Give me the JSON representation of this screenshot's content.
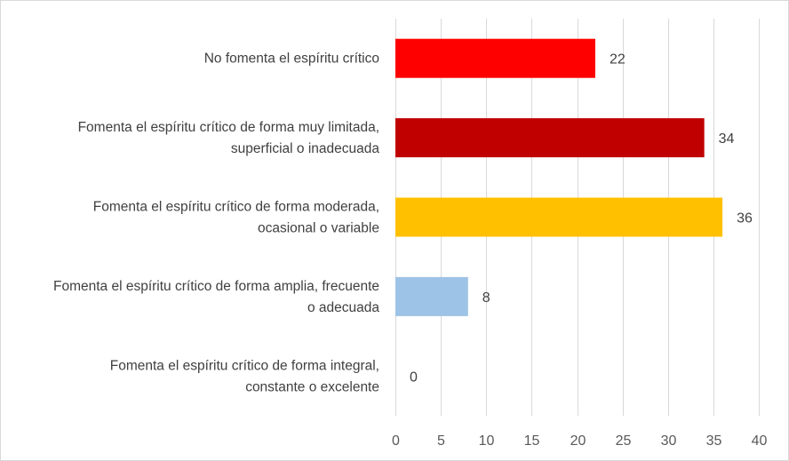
{
  "chart_data": {
    "type": "bar",
    "orientation": "horizontal",
    "categories": [
      [
        "No fomenta el espíritu crítico"
      ],
      [
        "Fomenta el espíritu crítico de forma muy limitada,",
        "superficial o inadecuada"
      ],
      [
        "Fomenta el espíritu crítico de forma moderada,",
        "ocasional o variable"
      ],
      [
        "Fomenta el espíritu crítico de forma amplia, frecuente",
        "o adecuada"
      ],
      [
        "Fomenta el espíritu crítico de forma integral,",
        "constante o excelente"
      ]
    ],
    "values": [
      22,
      34,
      36,
      8,
      0
    ],
    "colors": [
      "#ff0000",
      "#c00000",
      "#ffc000",
      "#9dc3e6",
      "#9dc3e6"
    ],
    "xlim": [
      0,
      40
    ],
    "xticks": [
      0,
      5,
      10,
      15,
      20,
      25,
      30,
      35,
      40
    ],
    "grid": true,
    "data_labels": true,
    "legend": "none"
  }
}
